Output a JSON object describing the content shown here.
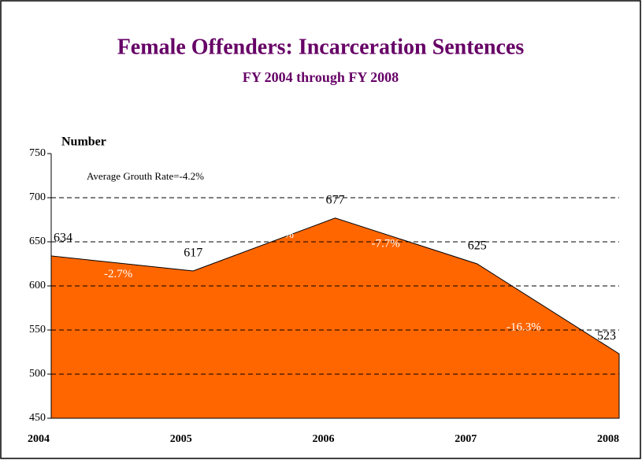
{
  "chart_data": {
    "type": "area",
    "title": "Female Offenders: Incarceration Sentences",
    "subtitle": "FY 2004 through FY 2008",
    "y_label": "Number",
    "annotation": "Average Grouth Rate=-4.2%",
    "categories": [
      "2004",
      "2005",
      "2006",
      "2007",
      "2008"
    ],
    "values": [
      634,
      617,
      677,
      625,
      523
    ],
    "growth_labels": [
      "-2.7%",
      "9.7%",
      "-7.7%",
      "-16.3%"
    ],
    "color": "#ff6600",
    "ylim": [
      450,
      750
    ],
    "yticks": [
      450,
      500,
      550,
      600,
      650,
      700,
      750
    ],
    "grid": true
  }
}
